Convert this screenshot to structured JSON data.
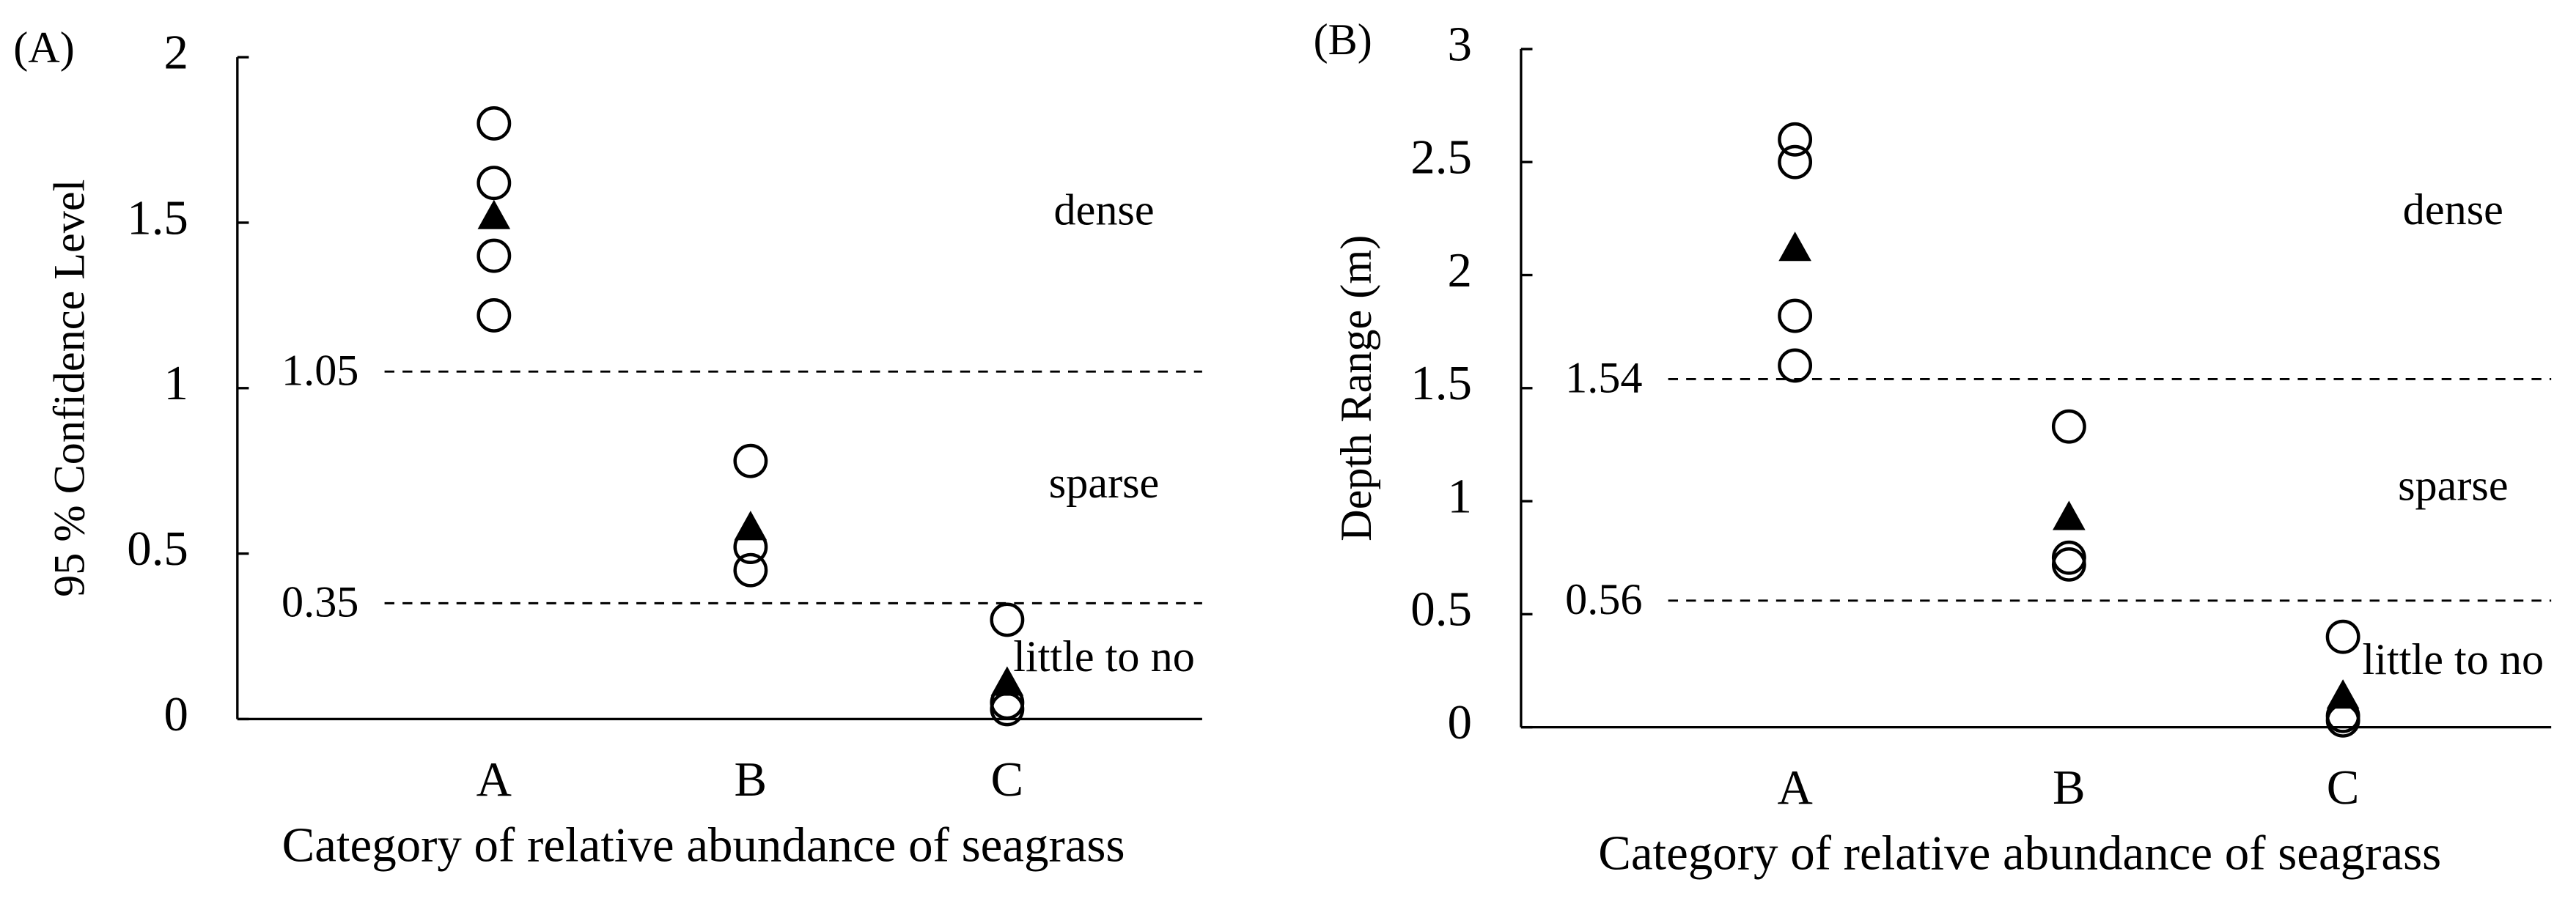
{
  "chart_data": [
    {
      "type": "scatter",
      "panel_label": "(A)",
      "y_label": "95 % Confidence Level",
      "x_label": "Category of relative abundance of seagrass",
      "categories": [
        "A",
        "B",
        "C"
      ],
      "circles": [
        [
          1.8,
          1.62,
          1.4,
          1.22
        ],
        [
          0.78,
          0.52,
          0.45
        ],
        [
          0.3,
          0.05,
          0.03
        ]
      ],
      "triangles": [
        1.52,
        0.58,
        0.11
      ],
      "thresholds": [
        1.05,
        0.35
      ],
      "annotations": [
        "dense",
        "sparse",
        "little to no"
      ],
      "ylim": [
        0,
        2
      ],
      "yticks": [
        0,
        0.5,
        1,
        1.5,
        2
      ]
    },
    {
      "type": "scatter",
      "panel_label": "(B)",
      "y_label": "Depth Range (m)",
      "x_label": "Category of relative abundance of seagrass",
      "categories": [
        "A",
        "B",
        "C"
      ],
      "circles": [
        [
          2.6,
          2.5,
          1.82,
          1.6
        ],
        [
          1.33,
          0.75,
          0.72
        ],
        [
          0.4,
          0.05,
          0.03
        ]
      ],
      "triangles": [
        2.12,
        0.93,
        0.14
      ],
      "thresholds": [
        1.54,
        0.56
      ],
      "annotations": [
        "dense",
        "sparse",
        "little to no"
      ],
      "ylim": [
        0,
        3
      ],
      "yticks": [
        0,
        0.5,
        1,
        1.5,
        2,
        2.5,
        3
      ]
    }
  ]
}
